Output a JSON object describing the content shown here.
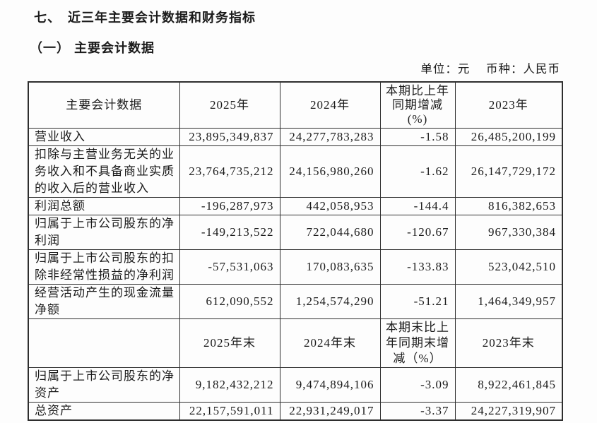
{
  "titles": {
    "section": "七、　近三年主要会计数据和财务指标",
    "subsection": "（一） 主要会计数据",
    "unit_note": "单位：元　 币种：人民币"
  },
  "table": {
    "period_header": {
      "label": "主要会计数据",
      "col_2025": "2025年",
      "col_2024": "2024年",
      "col_change": "本期比上年\n同期增减\n(%)",
      "col_2023": "2023年"
    },
    "period_rows": [
      {
        "label": "营业收入",
        "y2025": "23,895,349,837",
        "y2024": "24,277,783,283",
        "change": "-1.58",
        "y2023": "26,485,200,199"
      },
      {
        "label": "扣除与主营业务无关的业务收入和不具备商业实质的收入后的营业收入",
        "y2025": "23,764,735,212",
        "y2024": "24,156,980,260",
        "change": "-1.62",
        "y2023": "26,147,729,172"
      },
      {
        "label": "利润总额",
        "y2025": "-196,287,973",
        "y2024": "442,058,953",
        "change": "-144.4",
        "y2023": "816,382,653"
      },
      {
        "label": "归属于上市公司股东的净利润",
        "y2025": "-149,213,522",
        "y2024": "722,044,680",
        "change": "-120.67",
        "y2023": "967,330,384"
      },
      {
        "label": "归属于上市公司股东的扣除非经常性损益的净利润",
        "y2025": "-57,531,063",
        "y2024": "170,083,635",
        "change": "-133.83",
        "y2023": "523,042,510"
      },
      {
        "label": "经营活动产生的现金流量净额",
        "y2025": "612,090,552",
        "y2024": "1,254,574,290",
        "change": "-51.21",
        "y2023": "1,464,349,957"
      }
    ],
    "point_header": {
      "label": "",
      "col_2025": "2025年末",
      "col_2024": "2024年末",
      "col_change": "本期末比上\n年同期末增\n减（%）",
      "col_2023": "2023年末"
    },
    "point_rows": [
      {
        "label": "归属于上市公司股东的净资产",
        "y2025": "9,182,432,212",
        "y2024": "9,474,894,106",
        "change": "-3.09",
        "y2023": "8,922,461,845"
      },
      {
        "label": "总资产",
        "y2025": "22,157,591,011",
        "y2024": "22,931,249,017",
        "change": "-3.37",
        "y2023": "24,227,319,907"
      }
    ]
  }
}
